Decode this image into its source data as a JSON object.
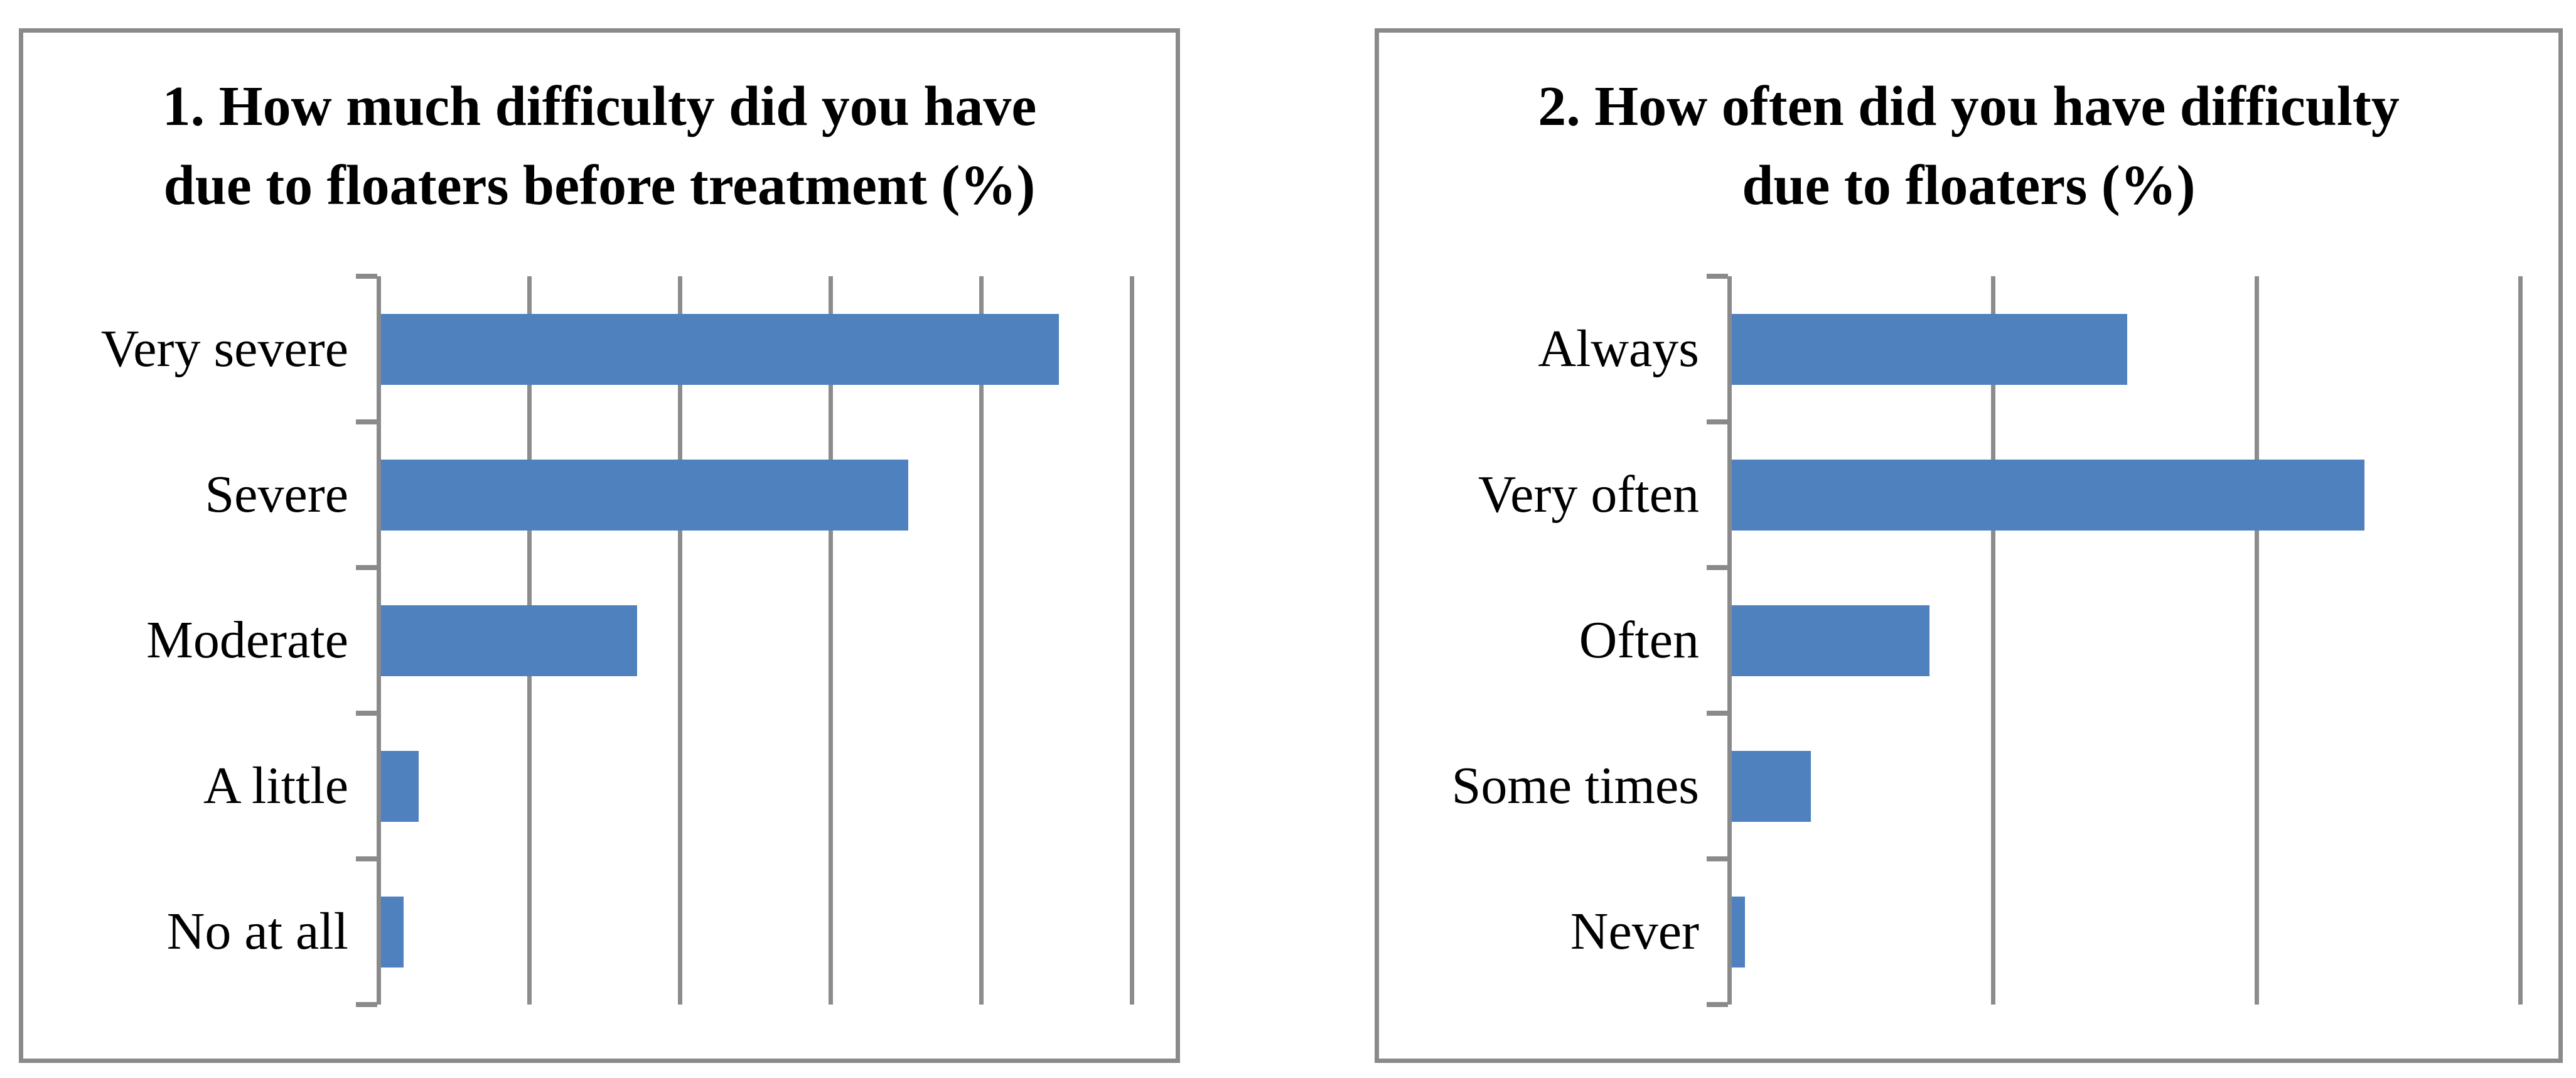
{
  "figure": {
    "background_color": "#ffffff",
    "bar_color": "#4e81bd",
    "gridline_color": "#8c8c8c",
    "axis_color": "#8a8a8a",
    "panel_border_color": "#8a8a8a",
    "text_color": "#000000"
  },
  "chart_data": [
    {
      "type": "bar",
      "orientation": "horizontal",
      "title": "1. How much difficulty did you have due to floaters before treatment (%)",
      "title_lines": [
        "1. How much difficulty did you have",
        "due to floaters before treatment (%)"
      ],
      "categories": [
        "Very severe",
        "Severe",
        "Moderate",
        "A little",
        "No at all"
      ],
      "values": [
        45,
        35,
        17,
        2.5,
        1.5
      ],
      "xlabel": "",
      "ylabel": "",
      "xlim": [
        0,
        50
      ],
      "gridline_step": 10,
      "grid": true,
      "legend": false,
      "value_labels_shown": false,
      "axis_tick_labels_shown": false
    },
    {
      "type": "bar",
      "orientation": "horizontal",
      "title": "2. How often did you have difficulty due to floaters (%)",
      "title_lines": [
        "2. How often did you have difficulty",
        "due to floaters (%)"
      ],
      "categories": [
        "Always",
        "Very often",
        "Often",
        "Some times",
        "Never"
      ],
      "values": [
        30,
        48,
        15,
        6,
        1
      ],
      "xlabel": "",
      "ylabel": "",
      "xlim": [
        0,
        60
      ],
      "gridline_step": 20,
      "grid": true,
      "legend": false,
      "value_labels_shown": false,
      "axis_tick_labels_shown": false
    }
  ]
}
